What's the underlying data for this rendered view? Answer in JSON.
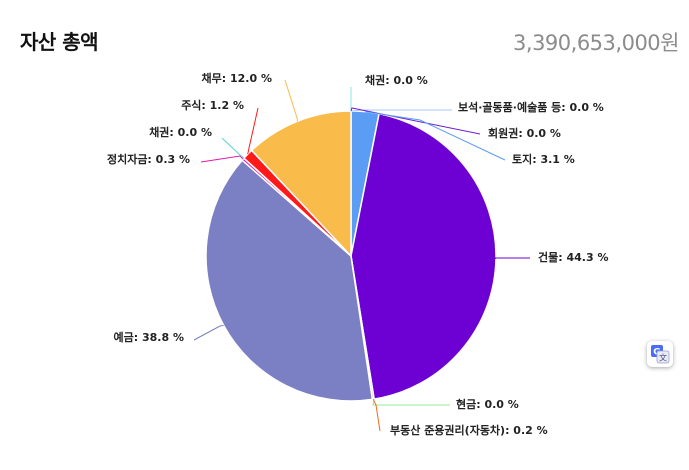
{
  "header": {
    "title": "자산 총액",
    "total": "3,390,653,000원"
  },
  "chart_data": {
    "type": "pie",
    "title": "",
    "unit": "%",
    "slices": [
      {
        "name": "채권",
        "value": 0.0,
        "label": "채권: 0.0 %",
        "color": "#8ee6e6"
      },
      {
        "name": "보석·골동품·예술품 등",
        "value": 0.0,
        "label": "보석·골동품·예술품 등: 0.0 %",
        "color": "#a9c7ff"
      },
      {
        "name": "회원권",
        "value": 0.0,
        "label": "회원권: 0.0 %",
        "color": "#6a1fd6"
      },
      {
        "name": "토지",
        "value": 3.1,
        "label": "토지: 3.1 %",
        "color": "#5b9cf5"
      },
      {
        "name": "건물",
        "value": 44.3,
        "label": "건물: 44.3 %",
        "color": "#6d00d2"
      },
      {
        "name": "현금",
        "value": 0.0,
        "label": "현금: 0.0 %",
        "color": "#90ee90"
      },
      {
        "name": "부동산 준용권리(자동차)",
        "value": 0.2,
        "label": "부동산 준용권리(자동차): 0.2 %",
        "color": "#f26b1d"
      },
      {
        "name": "예금",
        "value": 38.8,
        "label": "예금: 38.8 %",
        "color": "#7b7fc4"
      },
      {
        "name": "정치자금",
        "value": 0.3,
        "label": "정치자금: 0.3 %",
        "color": "#e01aa8"
      },
      {
        "name": "채권",
        "value": 0.0,
        "label": "채권: 0.0 %",
        "color": "#56d4d4"
      },
      {
        "name": "주식",
        "value": 1.2,
        "label": "주식: 1.2 %",
        "color": "#ff1a1a"
      },
      {
        "name": "채무",
        "value": 12.0,
        "label": "채무: 12.0 %",
        "color": "#f9bb4a"
      }
    ]
  },
  "translate_button": {
    "icon": "translate-icon"
  }
}
